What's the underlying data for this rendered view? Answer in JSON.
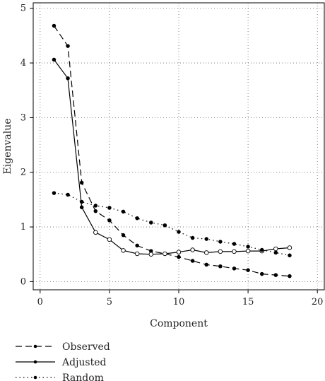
{
  "chart_data": {
    "type": "line",
    "title": "",
    "xlabel": "Component",
    "ylabel": "Eigenvalue",
    "xlim": [
      -0.5,
      20.5
    ],
    "ylim": [
      -0.15,
      5.1
    ],
    "xticks": [
      0,
      5,
      10,
      15,
      20
    ],
    "yticks": [
      0,
      1,
      2,
      3,
      4,
      5
    ],
    "grid": true,
    "legend_position": "bottom-left",
    "series": [
      {
        "name": "Observed",
        "style": "dashed",
        "marker": "filled",
        "x": [
          1,
          2,
          3,
          4,
          5,
          6,
          7,
          8,
          9,
          10,
          11,
          12,
          13,
          14,
          15,
          16,
          17,
          18
        ],
        "values": [
          4.68,
          4.31,
          1.81,
          1.29,
          1.12,
          0.85,
          0.66,
          0.56,
          0.51,
          0.45,
          0.38,
          0.31,
          0.28,
          0.24,
          0.21,
          0.14,
          0.12,
          0.1
        ]
      },
      {
        "name": "Adjusted",
        "style": "solid",
        "marker": "mixed",
        "x": [
          1,
          2,
          3,
          4,
          5,
          6,
          7,
          8,
          9,
          10,
          11,
          12,
          13,
          14,
          15,
          16,
          17,
          18
        ],
        "values": [
          4.06,
          3.72,
          1.36,
          0.9,
          0.77,
          0.57,
          0.51,
          0.5,
          0.51,
          0.54,
          0.58,
          0.53,
          0.55,
          0.55,
          0.56,
          0.56,
          0.6,
          0.62
        ],
        "filled_points": 3
      },
      {
        "name": "Random",
        "style": "dotted",
        "marker": "filled",
        "x": [
          1,
          2,
          3,
          4,
          5,
          6,
          7,
          8,
          9,
          10,
          11,
          12,
          13,
          14,
          15,
          16,
          17,
          18
        ],
        "values": [
          1.62,
          1.59,
          1.46,
          1.39,
          1.35,
          1.28,
          1.16,
          1.08,
          1.03,
          0.91,
          0.8,
          0.78,
          0.73,
          0.69,
          0.64,
          0.58,
          0.53,
          0.48
        ]
      }
    ]
  }
}
